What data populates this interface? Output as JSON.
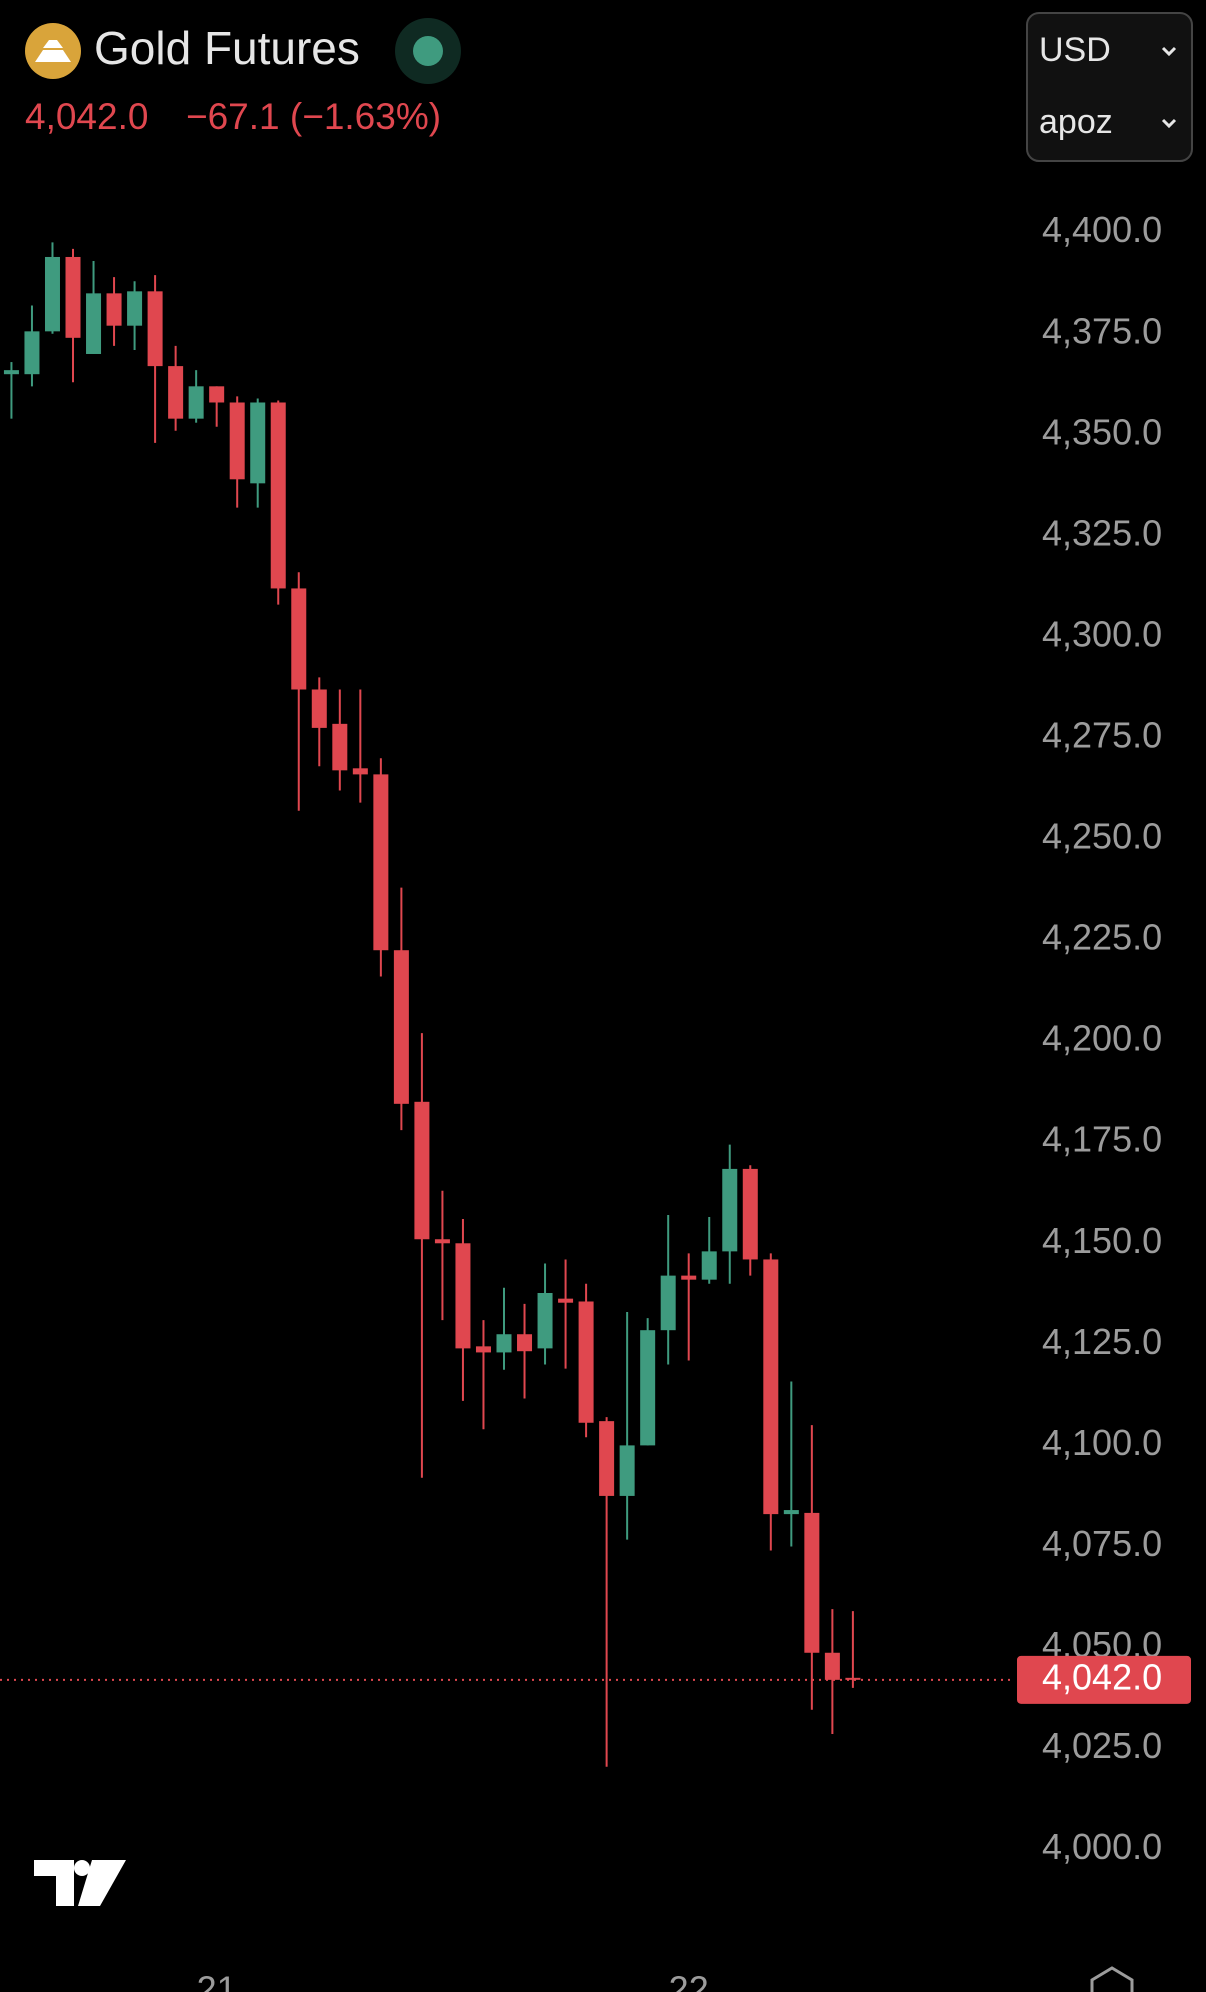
{
  "header": {
    "symbol": "Gold Futures",
    "price": "4,042.0",
    "change": "−67.1 (−1.63%)",
    "currency": "USD",
    "unit": "apoz"
  },
  "chart_data": {
    "type": "candlestick",
    "categories": [
      null,
      null,
      null,
      null,
      null,
      null,
      null,
      null,
      null,
      null,
      "21",
      null,
      null,
      null,
      null,
      null,
      null,
      null,
      null,
      null,
      null,
      null,
      null,
      null,
      null,
      null,
      null,
      null,
      null,
      null,
      null,
      null,
      null,
      "22",
      null,
      null,
      null,
      null,
      null,
      null,
      null,
      null
    ],
    "open": [
      4365,
      4365,
      4375.6,
      4394,
      4370,
      4385,
      4377,
      4385.5,
      4367,
      4354,
      4362,
      4358,
      4338,
      4358,
      4312,
      4287,
      4278.5,
      4267.5,
      4266,
      4222.5,
      4185,
      4151,
      4150,
      4124.5,
      4123,
      4127.5,
      4124,
      4136.3,
      4135.6,
      4106,
      4087.5,
      4100,
      4128.5,
      4142,
      4141,
      4148,
      4168.4,
      4146,
      4083,
      4083.3,
      4048.7,
      4042.5
    ],
    "high": [
      4368,
      4382,
      4397.6,
      4396,
      4393,
      4389,
      4388,
      4389.5,
      4372,
      4366,
      4362,
      4359.5,
      4359,
      4358.5,
      4316,
      4290,
      4287,
      4287,
      4270,
      4238,
      4202,
      4163,
      4156,
      4131,
      4139,
      4135,
      4145,
      4146,
      4140,
      4107,
      4133,
      4131.5,
      4157,
      4147.5,
      4156.5,
      4174.4,
      4169.3,
      4147.5,
      4115.8,
      4105,
      4059.5,
      4059
    ],
    "low": [
      4354,
      4362,
      4375,
      4363,
      4370,
      4372,
      4371,
      4348,
      4351,
      4353,
      4352,
      4332,
      4332,
      4308,
      4257,
      4268,
      4262,
      4259,
      4216,
      4178,
      4092,
      4131,
      4111,
      4104,
      4118.7,
      4111.6,
      4120,
      4119,
      4102,
      4020.5,
      4076.7,
      4100,
      4120,
      4121,
      4140,
      4140,
      4142,
      4074,
      4075,
      4034.6,
      4028.6,
      4040
    ],
    "close": [
      4366,
      4375.6,
      4394,
      4374,
      4385,
      4377,
      4385.5,
      4367,
      4354,
      4362,
      4358,
      4339,
      4358,
      4312,
      4287,
      4277.5,
      4267,
      4266,
      4222.5,
      4184.5,
      4151,
      4150,
      4124,
      4123,
      4127.5,
      4123.3,
      4137.7,
      4135.3,
      4105.6,
      4087.5,
      4100,
      4128.5,
      4142,
      4141,
      4148,
      4168.4,
      4146,
      4083,
      4084,
      4048.7,
      4042,
      4042
    ],
    "up_color": "#3f9b7f",
    "down_color": "#e0474f",
    "ylim": [
      3991,
      4417
    ],
    "yticks": [
      {
        "value": 4000,
        "label": "4,000.0"
      },
      {
        "value": 4025,
        "label": "4,025.0"
      },
      {
        "value": 4050,
        "label": "4,050.0"
      },
      {
        "value": 4075,
        "label": "4,075.0"
      },
      {
        "value": 4100,
        "label": "4,100.0"
      },
      {
        "value": 4125,
        "label": "4,125.0"
      },
      {
        "value": 4150,
        "label": "4,150.0"
      },
      {
        "value": 4175,
        "label": "4,175.0"
      },
      {
        "value": 4200,
        "label": "4,200.0"
      },
      {
        "value": 4225,
        "label": "4,225.0"
      },
      {
        "value": 4250,
        "label": "4,250.0"
      },
      {
        "value": 4275,
        "label": "4,275.0"
      },
      {
        "value": 4300,
        "label": "4,300.0"
      },
      {
        "value": 4325,
        "label": "4,325.0"
      },
      {
        "value": 4350,
        "label": "4,350.0"
      },
      {
        "value": 4375,
        "label": "4,375.0"
      },
      {
        "value": 4400,
        "label": "4,400.0"
      }
    ],
    "grid": false,
    "last_price": {
      "value": 4042.0,
      "label": "4,042.0"
    }
  }
}
